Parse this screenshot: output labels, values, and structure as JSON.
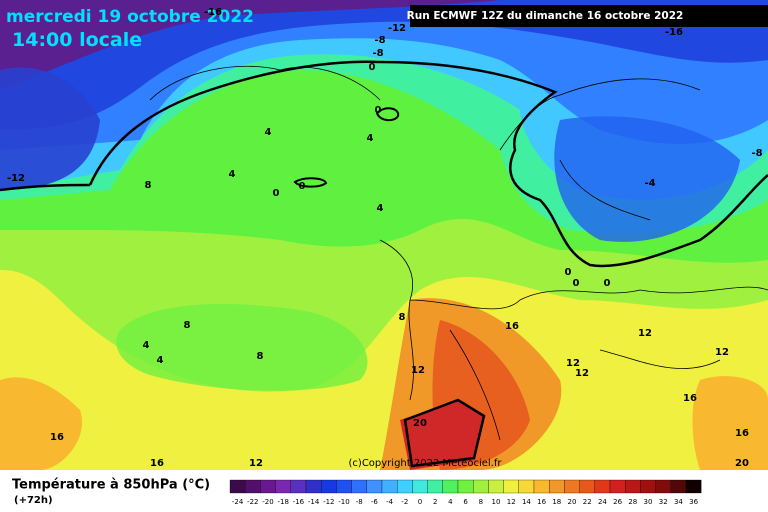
{
  "header": {
    "date": "mercredi 19 octobre 2022",
    "time": "14:00 locale",
    "run": "Run ECMWF 12Z du dimanche 16 octobre 2022"
  },
  "copyright": "(c)Copyright 2022 Meteociel.fr",
  "contour_labels": [
    "-16",
    "-12",
    "-8",
    "-8",
    "0",
    "-16",
    "-12",
    "-8",
    "8",
    "4",
    "4",
    "4",
    "0",
    "0",
    "0",
    "4",
    "-4",
    "0",
    "0",
    "0",
    "16",
    "8",
    "8",
    "4",
    "4",
    "8",
    "12",
    "12",
    "12",
    "12",
    "12",
    "16",
    "20",
    "16",
    "16",
    "12",
    "16",
    "20"
  ],
  "legend": {
    "title": "Température à 850hPa (°C)",
    "lead": "(+72h)",
    "labels": [
      -24,
      -22,
      -20,
      -18,
      -16,
      -14,
      -12,
      -10,
      -8,
      -6,
      -4,
      -2,
      0,
      2,
      4,
      6,
      8,
      10,
      12,
      14,
      16,
      18,
      20,
      22,
      24,
      26,
      28,
      30,
      32,
      34,
      36
    ],
    "colors": [
      "#3a0a4a",
      "#52106a",
      "#6a1890",
      "#7a28b0",
      "#5a30c0",
      "#3030c8",
      "#1838e0",
      "#2050f0",
      "#3070ff",
      "#4090ff",
      "#40b0ff",
      "#40d0ff",
      "#40e8e0",
      "#40f0a0",
      "#50f060",
      "#70f040",
      "#a0f040",
      "#c8f040",
      "#f0f040",
      "#f8d838",
      "#f8b830",
      "#f09828",
      "#f07820",
      "#e85818",
      "#e03818",
      "#d02020",
      "#b81818",
      "#a01010",
      "#800c0c",
      "#500808",
      "#100000"
    ]
  }
}
